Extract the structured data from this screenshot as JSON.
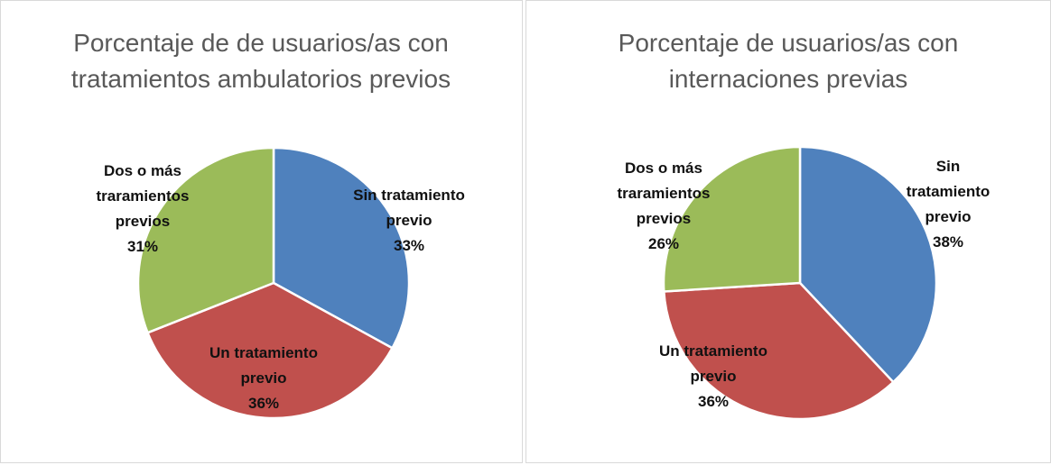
{
  "chart_data": [
    {
      "type": "pie",
      "title": "Porcentaje de de usuarios/as con tratamientos ambulatorios previos",
      "categories": [
        "Sin tratamiento previo",
        "Un tratamiento previo",
        "Dos o más traramientos previos"
      ],
      "values": [
        33,
        36,
        31
      ],
      "value_labels": [
        "33%",
        "36%",
        "31%"
      ],
      "colors": [
        "#4f81bd",
        "#c0504d",
        "#9bbb59"
      ]
    },
    {
      "type": "pie",
      "title": "Porcentaje de usuarios/as con internaciones previas",
      "categories": [
        "Sin tratamiento previo",
        "Un tratamiento previo",
        "Dos o más traramientos previos"
      ],
      "values": [
        38,
        36,
        26
      ],
      "value_labels": [
        "38%",
        "36%",
        "26%"
      ],
      "colors": [
        "#4f81bd",
        "#c0504d",
        "#9bbb59"
      ]
    }
  ]
}
